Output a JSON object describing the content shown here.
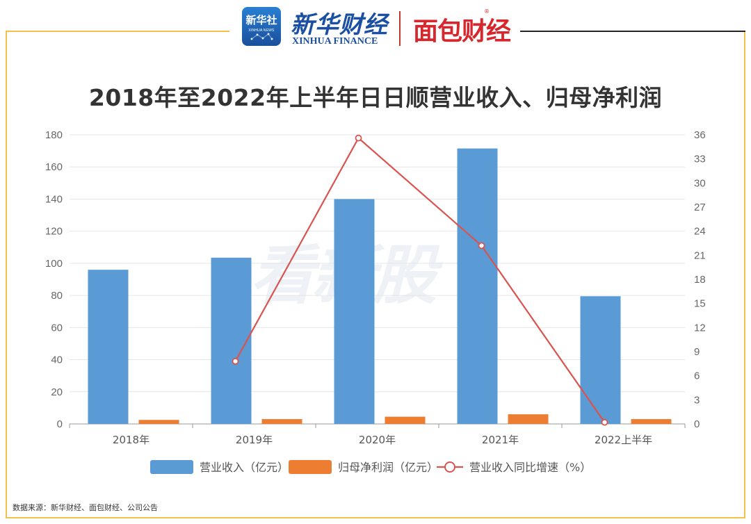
{
  "header": {
    "xinhua_badge_cn": "新华社",
    "xinhua_badge_en": "XINHUA NEWS",
    "xinhua_finance_cn": "新华财经",
    "xinhua_finance_en": "XINHUA FINANCE",
    "mianbao_logo": "面包财经",
    "mianbao_reg": "®"
  },
  "watermark": "看新股",
  "source": "数据来源：新华财经、面包财经、公司公告",
  "colors": {
    "revenue": "#5b9bd5",
    "net_profit": "#ed7d31",
    "growth": "#d9534f",
    "frame": "#f2c24b"
  },
  "chart_data": {
    "type": "bar",
    "title": "2018年至2022年上半年日日顺营业收入、归母净利润",
    "categories": [
      "2018年",
      "2019年",
      "2020年",
      "2021年",
      "2022上半年"
    ],
    "y_left": {
      "ylim": [
        0,
        180
      ],
      "ticks": [
        "0",
        "20",
        "40",
        "60",
        "80",
        "100",
        "120",
        "140",
        "160",
        "180"
      ]
    },
    "y_right": {
      "ylim": [
        0,
        36
      ],
      "ticks": [
        "0",
        "3",
        "6",
        "9",
        "12",
        "15",
        "18",
        "21",
        "24",
        "27",
        "30",
        "33",
        "36"
      ]
    },
    "series": [
      {
        "name": "营业收入（亿元）",
        "type": "bar",
        "axis": "left",
        "values": [
          96,
          103.5,
          140,
          171.5,
          79.5
        ]
      },
      {
        "name": "归母净利润（亿元）",
        "type": "bar",
        "axis": "left",
        "values": [
          2.5,
          3,
          4.5,
          6,
          3
        ]
      },
      {
        "name": "营业收入同比增速（%）",
        "type": "line",
        "axis": "right",
        "values": [
          null,
          7.8,
          35.6,
          22.2,
          0.2
        ]
      }
    ],
    "legend_position": "bottom",
    "grid": true
  }
}
